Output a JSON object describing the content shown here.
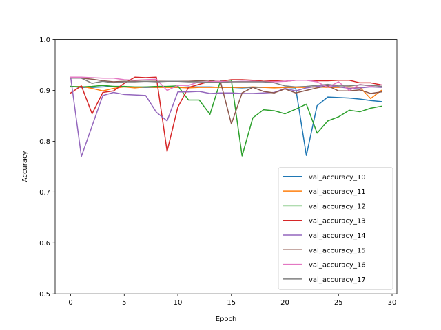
{
  "chart_data": {
    "type": "line",
    "title": "",
    "xlabel": "Epoch",
    "ylabel": "Accuracy",
    "xlim": [
      -1.45,
      30.45
    ],
    "ylim": [
      0.5,
      1.0
    ],
    "xticks": [
      0,
      5,
      10,
      15,
      20,
      25,
      30
    ],
    "yticks": [
      0.5,
      0.6,
      0.7,
      0.8,
      0.9,
      1.0
    ],
    "grid": false,
    "legend_position": "lower-right",
    "x": [
      0,
      1,
      2,
      3,
      4,
      5,
      6,
      7,
      8,
      9,
      10,
      11,
      12,
      13,
      14,
      15,
      16,
      17,
      18,
      19,
      20,
      21,
      22,
      23,
      24,
      25,
      26,
      27,
      28,
      29
    ],
    "series": [
      {
        "name": "val_accuracy_10",
        "color": "#1f77b4",
        "values": [
          0.908,
          0.906,
          0.906,
          0.907,
          0.908,
          0.907,
          0.906,
          0.906,
          0.906,
          0.907,
          0.906,
          0.907,
          0.907,
          0.907,
          0.906,
          0.906,
          0.905,
          0.906,
          0.906,
          0.906,
          0.906,
          0.905,
          0.772,
          0.87,
          0.887,
          0.886,
          0.885,
          0.883,
          0.88,
          0.878
        ]
      },
      {
        "name": "val_accuracy_11",
        "color": "#ff7f0e",
        "values": [
          0.907,
          0.908,
          0.904,
          0.899,
          0.904,
          0.907,
          0.905,
          0.907,
          0.906,
          0.906,
          0.906,
          0.905,
          0.906,
          0.906,
          0.906,
          0.906,
          0.906,
          0.907,
          0.906,
          0.905,
          0.906,
          0.906,
          0.906,
          0.907,
          0.906,
          0.906,
          0.907,
          0.906,
          0.884,
          0.9
        ]
      },
      {
        "name": "val_accuracy_12",
        "color": "#2ca02c",
        "values": [
          0.908,
          0.907,
          0.908,
          0.91,
          0.908,
          0.908,
          0.907,
          0.907,
          0.908,
          0.908,
          0.909,
          0.881,
          0.881,
          0.853,
          0.92,
          0.92,
          0.771,
          0.846,
          0.862,
          0.86,
          0.854,
          0.863,
          0.873,
          0.816,
          0.84,
          0.848,
          0.861,
          0.858,
          0.865,
          0.869
        ]
      },
      {
        "name": "val_accuracy_13",
        "color": "#d62728",
        "values": [
          0.895,
          0.909,
          0.854,
          0.896,
          0.899,
          0.914,
          0.926,
          0.925,
          0.926,
          0.78,
          0.867,
          0.906,
          0.912,
          0.918,
          0.918,
          0.921,
          0.921,
          0.92,
          0.918,
          0.919,
          0.918,
          0.92,
          0.92,
          0.919,
          0.919,
          0.92,
          0.92,
          0.915,
          0.915,
          0.911
        ]
      },
      {
        "name": "val_accuracy_14",
        "color": "#9467bd",
        "values": [
          0.926,
          0.77,
          0.83,
          0.89,
          0.896,
          0.892,
          0.891,
          0.89,
          0.857,
          0.84,
          0.897,
          0.897,
          0.898,
          0.894,
          0.895,
          0.895,
          0.894,
          0.894,
          0.895,
          0.896,
          0.904,
          0.899,
          0.905,
          0.908,
          0.91,
          0.907,
          0.904,
          0.905,
          0.907,
          0.906
        ]
      },
      {
        "name": "val_accuracy_15",
        "color": "#8c564b",
        "values": [
          0.925,
          0.924,
          0.922,
          0.919,
          0.917,
          0.918,
          0.918,
          0.918,
          0.918,
          0.918,
          0.918,
          0.918,
          0.919,
          0.92,
          0.916,
          0.834,
          0.895,
          0.906,
          0.898,
          0.895,
          0.903,
          0.895,
          0.9,
          0.905,
          0.909,
          0.899,
          0.899,
          0.901,
          0.894,
          0.897
        ]
      },
      {
        "name": "val_accuracy_16",
        "color": "#e377c2",
        "values": [
          0.926,
          0.926,
          0.925,
          0.924,
          0.924,
          0.921,
          0.92,
          0.921,
          0.922,
          0.9,
          0.91,
          0.91,
          0.917,
          0.917,
          0.918,
          0.917,
          0.918,
          0.918,
          0.917,
          0.917,
          0.918,
          0.92,
          0.92,
          0.917,
          0.906,
          0.917,
          0.9,
          0.912,
          0.908,
          0.911
        ]
      },
      {
        "name": "val_accuracy_17",
        "color": "#7f7f7f",
        "values": [
          0.924,
          0.924,
          0.914,
          0.918,
          0.915,
          0.917,
          0.917,
          0.918,
          0.917,
          0.918,
          0.918,
          0.917,
          0.917,
          0.916,
          0.916,
          0.917,
          0.917,
          0.917,
          0.917,
          0.915,
          0.909,
          0.907,
          0.908,
          0.91,
          0.912,
          0.909,
          0.909,
          0.911,
          0.91,
          0.908
        ]
      }
    ]
  }
}
